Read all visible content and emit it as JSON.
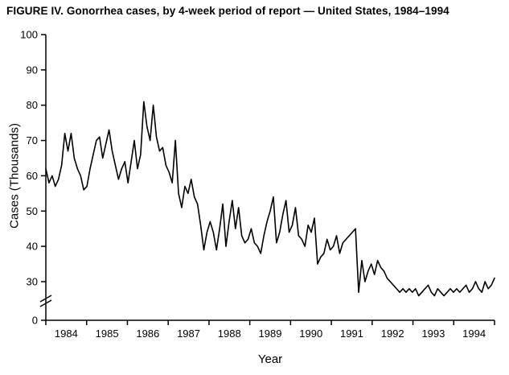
{
  "title": "FIGURE IV. Gonorrhea cases, by 4-week period of report — United States, 1984–1994",
  "chart_data": {
    "type": "line",
    "title": "FIGURE IV. Gonorrhea cases, by 4-week period of report — United States, 1984–1994",
    "xlabel": "Year",
    "ylabel": "Cases (Thousands)",
    "x_tick_labels": [
      "1984",
      "1985",
      "1986",
      "1987",
      "1988",
      "1989",
      "1990",
      "1991",
      "1992",
      "1993",
      "1994"
    ],
    "y_tick_labels": [
      0,
      30,
      40,
      50,
      60,
      70,
      80,
      90,
      100
    ],
    "y_axis_break": true,
    "ylim_display": [
      30,
      100
    ],
    "periods_per_year": 13,
    "line_color": "#000000",
    "legend": "none",
    "grid": false,
    "series": [
      {
        "name": "Gonorrhea cases (thousands), 4-week periods",
        "values": [
          62,
          58,
          60,
          57,
          59,
          63,
          72,
          67,
          72,
          65,
          62,
          60,
          56,
          57,
          62,
          66,
          70,
          71,
          65,
          69,
          73,
          67,
          63,
          59,
          62,
          64,
          58,
          64,
          70,
          62,
          66,
          81,
          74,
          70,
          80,
          71,
          67,
          68,
          63,
          61,
          58,
          70,
          55,
          51,
          57,
          55,
          59,
          54,
          52,
          46,
          39,
          44,
          47,
          44,
          39,
          45,
          52,
          40,
          47,
          53,
          45,
          51,
          43,
          41,
          42,
          45,
          41,
          40,
          38,
          43,
          47,
          50,
          54,
          41,
          44,
          49,
          53,
          44,
          46,
          51,
          43,
          42,
          40,
          46,
          44,
          48,
          35,
          37,
          38,
          42,
          39,
          40,
          43,
          38,
          41,
          42,
          43,
          44,
          45,
          27,
          36,
          30,
          33,
          35,
          32,
          36,
          34,
          33,
          31,
          30,
          29,
          28,
          27,
          28,
          27,
          28,
          27,
          28,
          26,
          27,
          28,
          29,
          27,
          26,
          28,
          27,
          26,
          27,
          28,
          27,
          28,
          27,
          28,
          29,
          27,
          28,
          30,
          28,
          27,
          30,
          28,
          29,
          31
        ]
      }
    ]
  }
}
